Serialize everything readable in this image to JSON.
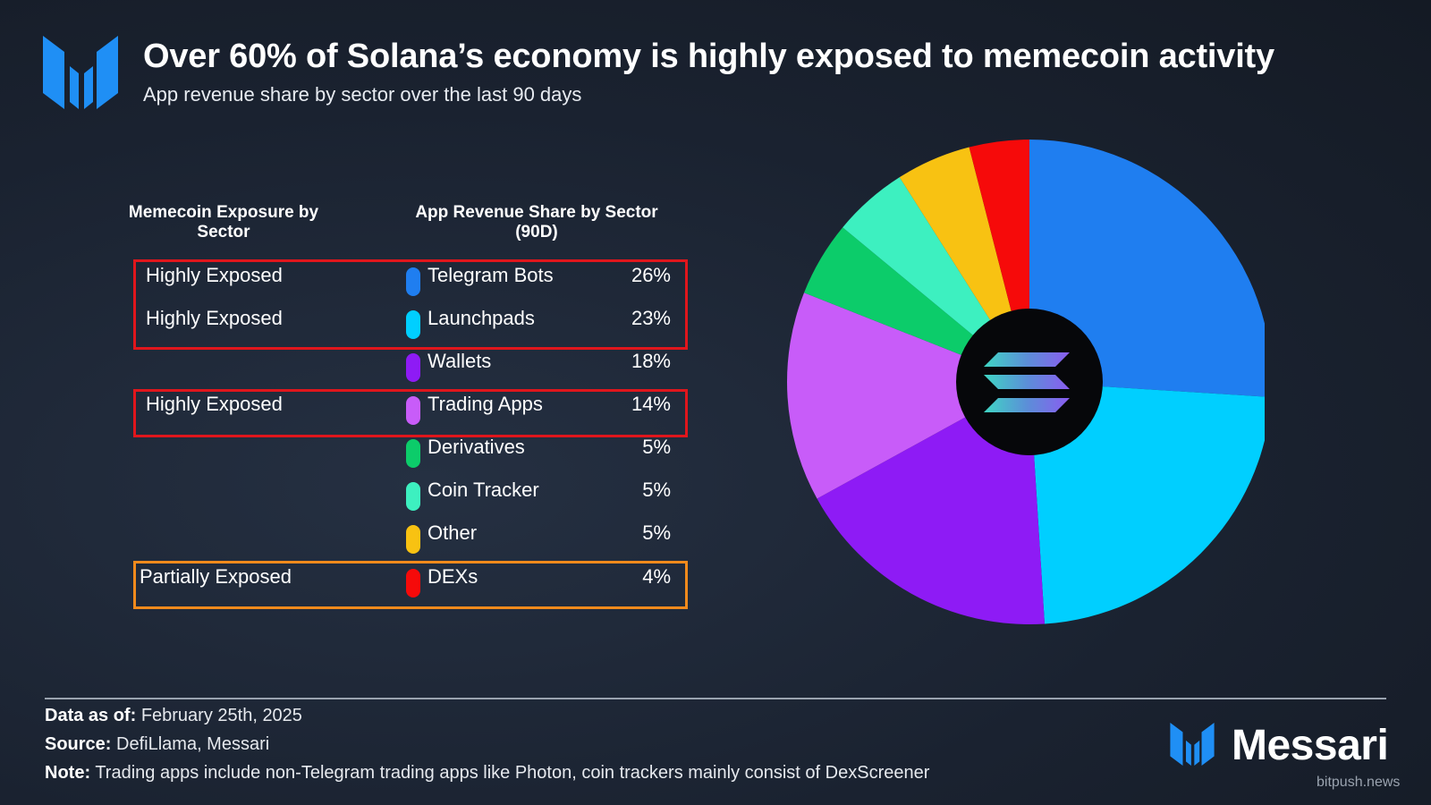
{
  "header": {
    "title": "Over 60% of Solana’s economy is highly exposed to memecoin activity",
    "subtitle": "App revenue share by sector over the last 90 days"
  },
  "table": {
    "col_exposure": "Memecoin Exposure by Sector",
    "col_revenue": "App Revenue Share by Sector (90D)"
  },
  "rows": [
    {
      "exposure": "Highly Exposed",
      "sector": "Telegram Bots",
      "pct": "26%",
      "color": "#1f7ef0"
    },
    {
      "exposure": "Highly Exposed",
      "sector": "Launchpads",
      "pct": "23%",
      "color": "#00cfff"
    },
    {
      "exposure": "",
      "sector": "Wallets",
      "pct": "18%",
      "color": "#8e1bf5"
    },
    {
      "exposure": "Highly Exposed",
      "sector": "Trading Apps",
      "pct": "14%",
      "color": "#c85cf9"
    },
    {
      "exposure": "",
      "sector": "Derivatives",
      "pct": "5%",
      "color": "#0ccc6a"
    },
    {
      "exposure": "",
      "sector": "Coin Tracker",
      "pct": "5%",
      "color": "#3df0c0"
    },
    {
      "exposure": "",
      "sector": "Other",
      "pct": "5%",
      "color": "#f8c212"
    },
    {
      "exposure": "Partially Exposed",
      "sector": "DEXs",
      "pct": "4%",
      "color": "#f60a0a"
    }
  ],
  "chart_data": {
    "type": "pie",
    "title": "Over 60% of Solana’s economy is highly exposed to memecoin activity",
    "subtitle": "App revenue share by sector over the last 90 days",
    "categories": [
      "Telegram Bots",
      "Launchpads",
      "Wallets",
      "Trading Apps",
      "Derivatives",
      "Coin Tracker",
      "Other",
      "DEXs"
    ],
    "values": [
      26,
      23,
      18,
      14,
      5,
      5,
      5,
      4
    ],
    "unit": "%",
    "colors": [
      "#1f7ef0",
      "#00cfff",
      "#8e1bf5",
      "#c85cf9",
      "#0ccc6a",
      "#3df0c0",
      "#f8c212",
      "#f60a0a"
    ],
    "start_angle_deg": 0,
    "direction": "clockwise",
    "center_logo": "solana-logo",
    "legend": "table-left"
  },
  "footer": {
    "date_label": "Data as of:",
    "date_value": "February 25th, 2025",
    "source_label": "Source:",
    "source_value": "DefiLlama, Messari",
    "note_label": "Note:",
    "note_value": "Trading apps include non-Telegram trading apps like Photon, coin trackers mainly consist of DexScreener"
  },
  "brand": {
    "name": "Messari",
    "watermark": "bitpush.news"
  }
}
